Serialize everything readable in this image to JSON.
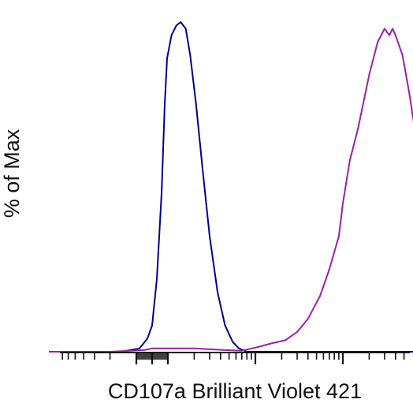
{
  "chart_data": {
    "type": "line",
    "title": "",
    "xlabel": "CD107a Brilliant Violet 421",
    "ylabel": "% of Max",
    "x_scale": "log",
    "xlim": [
      -1000,
      1000000
    ],
    "ylim": [
      0,
      100
    ],
    "grid": false,
    "legend": "none",
    "series": [
      {
        "color": "#00008B",
        "points": [
          [
            -1000,
            0
          ],
          [
            -150,
            0
          ],
          [
            -80,
            1
          ],
          [
            -30,
            4
          ],
          [
            0,
            8
          ],
          [
            30,
            22
          ],
          [
            60,
            48
          ],
          [
            80,
            75
          ],
          [
            95,
            89
          ],
          [
            110,
            96
          ],
          [
            125,
            99
          ],
          [
            140,
            100
          ],
          [
            160,
            98
          ],
          [
            180,
            90
          ],
          [
            210,
            75
          ],
          [
            250,
            55
          ],
          [
            300,
            35
          ],
          [
            370,
            18
          ],
          [
            450,
            8
          ],
          [
            550,
            3
          ],
          [
            650,
            1
          ],
          [
            800,
            0
          ],
          [
            1000000,
            0
          ]
        ]
      },
      {
        "color": "#A01EAA",
        "points": [
          [
            -1000,
            0
          ],
          [
            -200,
            0
          ],
          [
            -50,
            0.5
          ],
          [
            0,
            1
          ],
          [
            200,
            1
          ],
          [
            450,
            0.5
          ],
          [
            700,
            0.3
          ],
          [
            1100,
            1.5
          ],
          [
            1500,
            2.5
          ],
          [
            2200,
            3.5
          ],
          [
            3000,
            6
          ],
          [
            4000,
            10
          ],
          [
            5500,
            17
          ],
          [
            7000,
            25
          ],
          [
            9000,
            35
          ],
          [
            10000,
            45
          ],
          [
            12000,
            58
          ],
          [
            15000,
            68
          ],
          [
            20000,
            84
          ],
          [
            25000,
            94
          ],
          [
            30000,
            98
          ],
          [
            34000,
            96
          ],
          [
            37000,
            98
          ],
          [
            40000,
            96
          ],
          [
            48000,
            90
          ],
          [
            57000,
            79
          ],
          [
            66000,
            68
          ],
          [
            75000,
            60
          ],
          [
            85000,
            47
          ],
          [
            105000,
            38
          ],
          [
            130000,
            26
          ],
          [
            150000,
            15
          ],
          [
            170000,
            8
          ],
          [
            210000,
            3
          ],
          [
            260000,
            1
          ],
          [
            310000,
            0
          ],
          [
            1000000,
            0
          ]
        ]
      }
    ]
  }
}
